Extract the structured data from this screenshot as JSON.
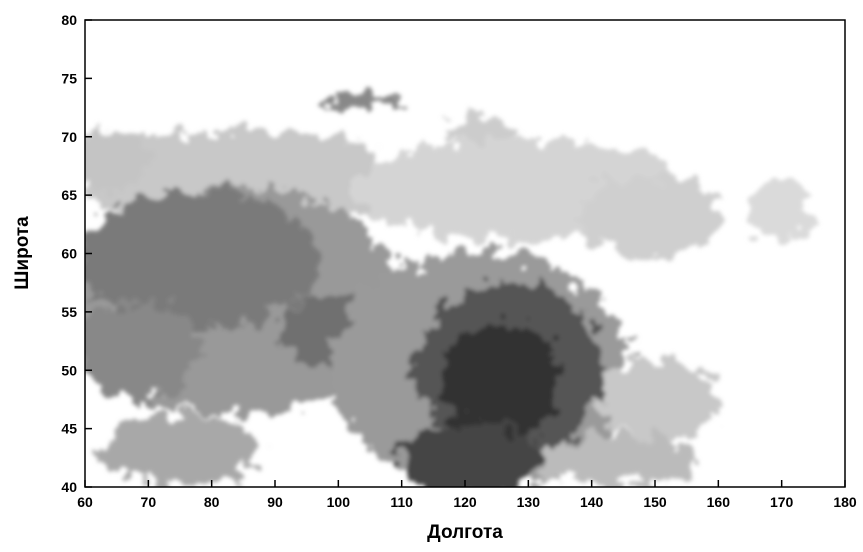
{
  "chart_data": {
    "type": "map",
    "x_label": "Долгота",
    "y_label": "Широта",
    "xlim": [
      60,
      180
    ],
    "xticks": [
      60,
      70,
      80,
      90,
      100,
      110,
      120,
      130,
      140,
      150,
      160,
      170,
      180
    ],
    "ylim": [
      40,
      80
    ],
    "yticks": [
      40,
      45,
      50,
      55,
      60,
      65,
      70,
      75,
      80
    ]
  }
}
